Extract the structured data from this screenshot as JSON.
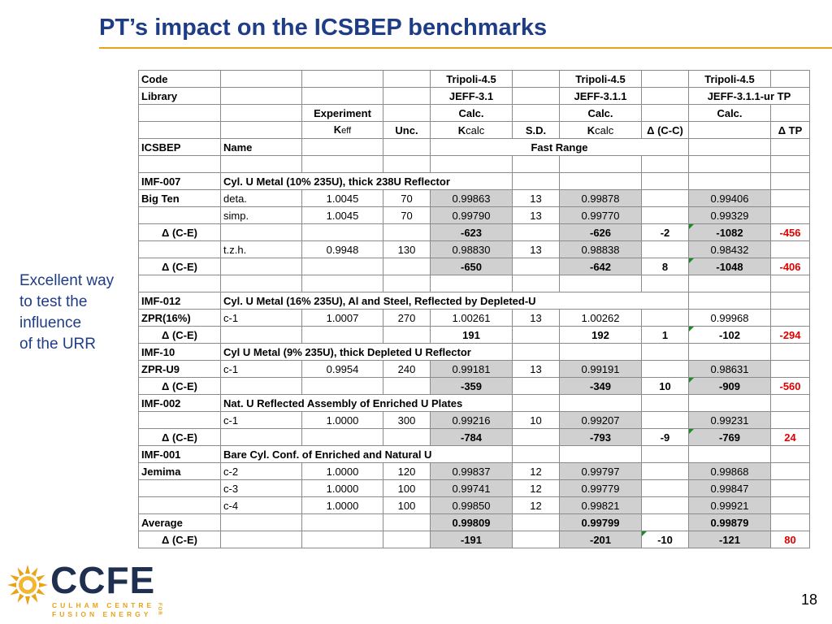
{
  "title": "PT’s impact on the ICSBEP benchmarks",
  "side_note": [
    "Excellent way",
    "to test the",
    "influence",
    "of the URR"
  ],
  "page_number": "18",
  "logo": {
    "main": "CCFE",
    "line1": "CULHAM CENTRE",
    "line2": "FUSION ENERGY",
    "for": "FOR"
  },
  "colors": {
    "title": "#1f3c86",
    "accent": "#e8a317",
    "delta_tp": "#e00000",
    "shaded": "#d0d0d0"
  },
  "table": {
    "rows": {
      "r0": [
        "Code",
        "",
        "",
        "",
        "Tripoli-4.5",
        "",
        "Tripoli-4.5",
        "",
        "Tripoli-4.5",
        ""
      ],
      "r1": [
        "Library",
        "",
        "",
        "",
        "JEFF-3.1",
        "",
        "JEFF-3.1.1",
        "",
        "JEFF-3.1.1-ur TP"
      ],
      "r2": [
        "",
        "",
        "Experiment",
        "",
        "Calc.",
        "",
        "Calc.",
        "",
        "Calc.",
        ""
      ],
      "r3": [
        "",
        "",
        "K",
        "eff",
        "Unc.",
        "K",
        "calc",
        "S.D.",
        "K",
        "calc",
        "Δ (C-C)",
        "",
        "Δ TP"
      ],
      "r4": [
        "ICSBEP",
        "Name",
        "Fast Range"
      ],
      "r6": [
        "IMF-007",
        "Cyl. U Metal (10% 235U), thick 238U Reflector"
      ],
      "r7": [
        "Big Ten",
        "deta.",
        "1.0045",
        "70",
        "0.99863",
        "13",
        "0.99878",
        "",
        "0.99406",
        ""
      ],
      "r8": [
        "",
        "simp.",
        "1.0045",
        "70",
        "0.99790",
        "13",
        "0.99770",
        "",
        "0.99329",
        ""
      ],
      "r9": [
        "Δ (C-E)",
        "",
        "",
        "",
        "-623",
        "",
        "-626",
        "-2",
        "-1082",
        "-456"
      ],
      "r10": [
        "",
        "t.z.h.",
        "0.9948",
        "130",
        "0.98830",
        "13",
        "0.98838",
        "",
        "0.98432",
        ""
      ],
      "r11": [
        "Δ (C-E)",
        "",
        "",
        "",
        "-650",
        "",
        "-642",
        "8",
        "-1048",
        "-406"
      ],
      "r13": [
        "IMF-012",
        "Cyl. U Metal (16% 235U), Al and Steel, Reflected by Depleted-U"
      ],
      "r14": [
        "ZPR(16%)",
        "c-1",
        "1.0007",
        "270",
        "1.00261",
        "13",
        "1.00262",
        "",
        "0.99968",
        ""
      ],
      "r15": [
        "Δ (C-E)",
        "",
        "",
        "",
        "191",
        "",
        "192",
        "1",
        "-102",
        "-294"
      ],
      "r16": [
        "IMF-10",
        "Cyl U Metal (9% 235U), thick Depleted U Reflector"
      ],
      "r17": [
        "ZPR-U9",
        "c-1",
        "0.9954",
        "240",
        "0.99181",
        "13",
        "0.99191",
        "",
        "0.98631",
        ""
      ],
      "r18": [
        "Δ (C-E)",
        "",
        "",
        "",
        "-359",
        "",
        "-349",
        "10",
        "-909",
        "-560"
      ],
      "r19": [
        "IMF-002",
        "Nat. U Reflected Assembly of Enriched  U Plates"
      ],
      "r20": [
        "",
        "c-1",
        "1.0000",
        "300",
        "0.99216",
        "10",
        "0.99207",
        "",
        "0.99231",
        ""
      ],
      "r21": [
        "Δ (C-E)",
        "",
        "",
        "",
        "-784",
        "",
        "-793",
        "-9",
        "-769",
        "24"
      ],
      "r22": [
        "IMF-001",
        "Bare Cyl. Conf. of Enriched and Natural U"
      ],
      "r23": [
        "Jemima",
        "c-2",
        "1.0000",
        "120",
        "0.99837",
        "12",
        "0.99797",
        "",
        "0.99868",
        ""
      ],
      "r24": [
        "",
        "c-3",
        "1.0000",
        "100",
        "0.99741",
        "12",
        "0.99779",
        "",
        "0.99847",
        ""
      ],
      "r25": [
        "",
        "c-4",
        "1.0000",
        "100",
        "0.99850",
        "12",
        "0.99821",
        "",
        "0.99921",
        ""
      ],
      "r26": [
        "Average",
        "",
        "",
        "",
        "0.99809",
        "",
        "0.99799",
        "",
        "0.99879",
        ""
      ],
      "r27": [
        "Δ (C-E)",
        "",
        "",
        "",
        "-191",
        "",
        "-201",
        "-10",
        "-121",
        "80"
      ]
    }
  }
}
